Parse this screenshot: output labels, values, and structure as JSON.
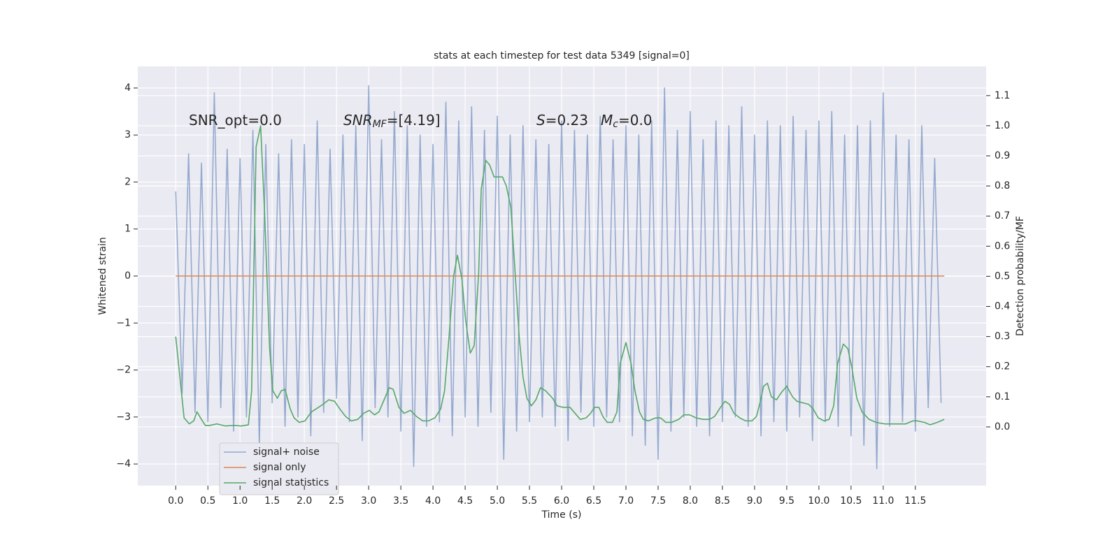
{
  "chart_data": {
    "type": "line",
    "title": "stats at each timestep for test data 5349 [signal=0]",
    "x_label": "Time (s)",
    "y_label": "Whitened strain",
    "y2_label": "Detection probability/MF",
    "annotations": [
      {
        "text": "SNR_opt=0.0"
      },
      {
        "symbol": "SNR",
        "subscript": "MF",
        "text": "=[4.19]"
      },
      {
        "symbol": "S",
        "text": "=0.23"
      },
      {
        "symbol": "M",
        "subscript": "c",
        "text": "=0.0"
      }
    ],
    "xlim": [
      -0.59,
      12.6
    ],
    "ylim": [
      -4.46,
      4.46
    ],
    "y2lim": [
      -0.195,
      1.197
    ],
    "xticks": [
      {
        "value": 0,
        "label": "0.0"
      },
      0.5,
      {
        "value": 1,
        "label": "1.0"
      },
      1.5,
      {
        "value": 2,
        "label": "2.0"
      },
      2.5,
      {
        "value": 3,
        "label": "3.0"
      },
      3.5,
      {
        "value": 4,
        "label": "4.0"
      },
      4.5,
      {
        "value": 5,
        "label": "5.0"
      },
      5.5,
      {
        "value": 6,
        "label": "6.0"
      },
      6.5,
      {
        "value": 7,
        "label": "7.0"
      },
      7.5,
      {
        "value": 8,
        "label": "8.0"
      },
      8.5,
      {
        "value": 9,
        "label": "9.0"
      },
      9.5,
      {
        "value": 10,
        "label": "10.0"
      },
      10.5,
      {
        "value": 11,
        "label": "11.0"
      },
      11.5
    ],
    "yticks": [
      {
        "value": -4,
        "label": "−4"
      },
      {
        "value": -3,
        "label": "−3"
      },
      {
        "value": -2,
        "label": "−2"
      },
      {
        "value": -1,
        "label": "−1"
      },
      0,
      1,
      2,
      3,
      4
    ],
    "y2ticks": [
      {
        "value": 0,
        "label": "0.0"
      },
      0.1,
      0.2,
      0.3,
      0.4,
      0.5,
      0.6,
      0.7,
      0.8,
      0.9,
      {
        "value": 1,
        "label": "1.0"
      },
      1.1
    ],
    "grid": true,
    "legend": "lower left",
    "series": [
      {
        "name": "signal+ noise",
        "color": "#4c72b0",
        "alpha": 0.55,
        "x": [
          0.0,
          0.1,
          0.2,
          0.3,
          0.4,
          0.5,
          0.6,
          0.7,
          0.8,
          0.9,
          1.0,
          1.1,
          1.2,
          1.3,
          1.4,
          1.5,
          1.6,
          1.7,
          1.8,
          1.9,
          2.0,
          2.1,
          2.2,
          2.3,
          2.4,
          2.5,
          2.6,
          2.7,
          2.8,
          2.9,
          3.0,
          3.1,
          3.2,
          3.3,
          3.4,
          3.5,
          3.6,
          3.7,
          3.8,
          3.9,
          4.0,
          4.1,
          4.2,
          4.3,
          4.4,
          4.5,
          4.6,
          4.7,
          4.8,
          4.9,
          5.0,
          5.1,
          5.2,
          5.3,
          5.4,
          5.5,
          5.6,
          5.7,
          5.8,
          5.9,
          6.0,
          6.1,
          6.2,
          6.3,
          6.4,
          6.5,
          6.6,
          6.7,
          6.8,
          6.9,
          7.0,
          7.1,
          7.2,
          7.3,
          7.4,
          7.5,
          7.6,
          7.7,
          7.8,
          7.9,
          8.0,
          8.1,
          8.2,
          8.3,
          8.4,
          8.5,
          8.6,
          8.7,
          8.8,
          8.9,
          9.0,
          9.1,
          9.2,
          9.3,
          9.4,
          9.5,
          9.6,
          9.7,
          9.8,
          9.9,
          10.0,
          10.1,
          10.2,
          10.3,
          10.4,
          10.5,
          10.6,
          10.7,
          10.8,
          10.9,
          11.0,
          11.1,
          11.2,
          11.3,
          11.4,
          11.5,
          11.6,
          11.7,
          11.8,
          11.9
        ],
        "values": [
          1.8,
          -2.5,
          2.6,
          -2.9,
          2.4,
          -3.1,
          3.9,
          -2.8,
          2.7,
          -3.3,
          2.5,
          -3.0,
          3.1,
          -3.6,
          2.8,
          -2.7,
          2.6,
          -3.2,
          2.9,
          -3.0,
          2.8,
          -3.4,
          3.3,
          -2.9,
          2.7,
          -2.6,
          3.0,
          -3.1,
          3.2,
          -3.5,
          4.05,
          -2.8,
          2.9,
          -3.0,
          3.5,
          -3.3,
          3.2,
          -4.05,
          3.0,
          -3.2,
          2.8,
          -3.1,
          3.7,
          -3.4,
          3.3,
          -3.0,
          3.6,
          -3.2,
          3.1,
          -2.9,
          3.4,
          -3.9,
          3.0,
          -3.3,
          3.2,
          -3.1,
          2.9,
          -3.0,
          2.8,
          -3.2,
          3.3,
          -3.5,
          3.1,
          -2.9,
          3.0,
          -3.2,
          3.4,
          -3.0,
          2.9,
          -3.1,
          3.2,
          -3.4,
          3.0,
          -3.6,
          3.3,
          -3.9,
          4.0,
          -3.3,
          3.1,
          -3.0,
          3.5,
          -3.2,
          2.9,
          -3.4,
          3.3,
          -3.1,
          3.2,
          -3.0,
          3.6,
          -3.2,
          3.0,
          -3.4,
          3.3,
          -3.1,
          3.2,
          -3.3,
          3.4,
          -3.0,
          3.1,
          -3.5,
          3.3,
          -3.1,
          3.5,
          -3.2,
          3.0,
          -3.4,
          3.2,
          -3.6,
          3.3,
          -4.1,
          3.9,
          -3.2,
          3.0,
          -3.1,
          2.9,
          -3.3,
          3.2,
          -2.8,
          2.5,
          -2.7
        ]
      },
      {
        "name": "signal only",
        "color": "#dd8452",
        "alpha": 1,
        "x": [
          0.0,
          11.95
        ],
        "values": [
          0,
          0
        ]
      },
      {
        "name": "signal statistics",
        "color": "#55a868",
        "alpha": 1,
        "axis": "y2",
        "x": [
          0,
          0.065,
          0.13,
          0.21,
          0.28,
          0.33,
          0.4,
          0.46,
          0.53,
          0.64,
          0.77,
          0.91,
          1.02,
          1.13,
          1.18,
          1.25,
          1.32,
          1.38,
          1.46,
          1.51,
          1.58,
          1.64,
          1.7,
          1.78,
          1.84,
          1.92,
          2.01,
          2.11,
          2.22,
          2.29,
          2.38,
          2.47,
          2.55,
          2.64,
          2.73,
          2.83,
          2.92,
          3.01,
          3.09,
          3.16,
          3.25,
          3.32,
          3.38,
          3.47,
          3.55,
          3.65,
          3.74,
          3.84,
          3.93,
          4.03,
          4.12,
          4.18,
          4.25,
          4.32,
          4.38,
          4.45,
          4.51,
          4.58,
          4.64,
          4.71,
          4.75,
          4.82,
          4.88,
          4.95,
          5.02,
          5.08,
          5.14,
          5.21,
          5.27,
          5.34,
          5.4,
          5.46,
          5.53,
          5.6,
          5.67,
          5.75,
          5.86,
          5.93,
          6.02,
          6.13,
          6.21,
          6.29,
          6.38,
          6.45,
          6.51,
          6.58,
          6.64,
          6.71,
          6.79,
          6.86,
          6.91,
          7.0,
          7.08,
          7.14,
          7.21,
          7.27,
          7.35,
          7.46,
          7.54,
          7.62,
          7.71,
          7.82,
          7.9,
          7.99,
          8.09,
          8.2,
          8.3,
          8.38,
          8.47,
          8.54,
          8.61,
          8.68,
          8.77,
          8.86,
          8.96,
          9.03,
          9.09,
          9.14,
          9.2,
          9.26,
          9.34,
          9.42,
          9.5,
          9.59,
          9.66,
          9.75,
          9.84,
          9.91,
          9.99,
          10.08,
          10.16,
          10.23,
          10.29,
          10.38,
          10.45,
          10.51,
          10.59,
          10.67,
          10.78,
          10.89,
          11.02,
          11.18,
          11.35,
          11.46,
          11.53,
          11.64,
          11.73,
          11.84,
          11.95
        ],
        "values": [
          0.3,
          0.165,
          0.03,
          0.01,
          0.02,
          0.05,
          0.025,
          0.005,
          0.005,
          0.01,
          0.003,
          0.005,
          0.003,
          0.007,
          0.12,
          0.93,
          1.0,
          0.72,
          0.26,
          0.12,
          0.095,
          0.12,
          0.125,
          0.06,
          0.03,
          0.015,
          0.02,
          0.05,
          0.065,
          0.075,
          0.09,
          0.085,
          0.06,
          0.035,
          0.02,
          0.025,
          0.045,
          0.055,
          0.04,
          0.05,
          0.095,
          0.13,
          0.125,
          0.065,
          0.045,
          0.055,
          0.035,
          0.02,
          0.02,
          0.03,
          0.06,
          0.12,
          0.3,
          0.5,
          0.57,
          0.49,
          0.35,
          0.245,
          0.27,
          0.51,
          0.79,
          0.885,
          0.87,
          0.83,
          0.83,
          0.83,
          0.8,
          0.73,
          0.535,
          0.3,
          0.165,
          0.095,
          0.07,
          0.09,
          0.13,
          0.12,
          0.095,
          0.07,
          0.065,
          0.065,
          0.045,
          0.025,
          0.03,
          0.045,
          0.065,
          0.065,
          0.035,
          0.015,
          0.015,
          0.05,
          0.21,
          0.28,
          0.21,
          0.12,
          0.05,
          0.025,
          0.02,
          0.03,
          0.03,
          0.015,
          0.015,
          0.025,
          0.04,
          0.04,
          0.03,
          0.025,
          0.025,
          0.035,
          0.065,
          0.085,
          0.075,
          0.045,
          0.03,
          0.02,
          0.02,
          0.035,
          0.085,
          0.135,
          0.145,
          0.1,
          0.09,
          0.115,
          0.135,
          0.1,
          0.085,
          0.08,
          0.075,
          0.06,
          0.03,
          0.02,
          0.025,
          0.07,
          0.21,
          0.275,
          0.26,
          0.2,
          0.095,
          0.05,
          0.025,
          0.015,
          0.01,
          0.01,
          0.01,
          0.02,
          0.02,
          0.015,
          0.007,
          0.015,
          0.025
        ]
      }
    ]
  }
}
